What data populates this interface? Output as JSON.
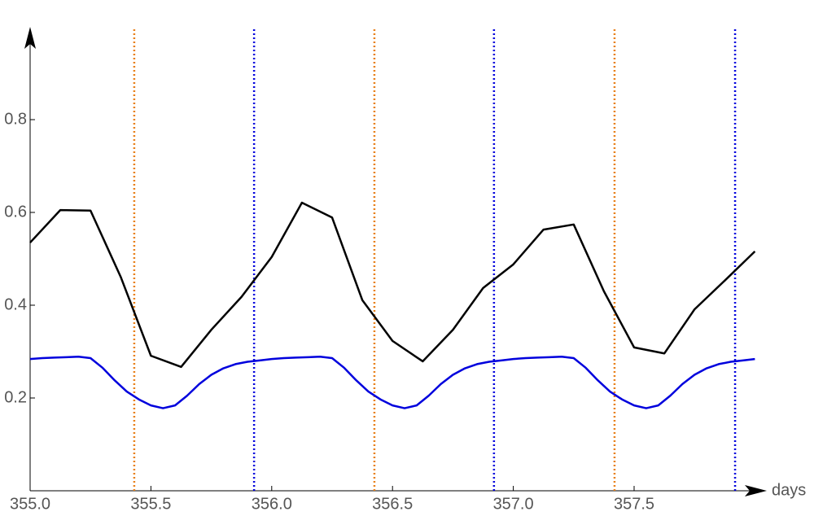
{
  "chart_data": {
    "type": "line",
    "x_label": "days",
    "xlim": [
      355,
      358.05
    ],
    "ylim": [
      0,
      1.0
    ],
    "xticks": [
      {
        "value": 355,
        "label": "355.0"
      },
      355.5,
      {
        "value": 356,
        "label": "356.0"
      },
      356.5,
      {
        "value": 357,
        "label": "357.0"
      },
      357.5
    ],
    "yticks": [
      0.2,
      0.4,
      0.6,
      0.8
    ],
    "grid": false,
    "series": [
      {
        "color": "#000000",
        "x": [
          355.0,
          355.125,
          355.25,
          355.375,
          355.5,
          355.625,
          355.75,
          355.875,
          356.0,
          356.125,
          356.25,
          356.375,
          356.5,
          356.625,
          356.75,
          356.875,
          357.0,
          357.125,
          357.25,
          357.375,
          357.5,
          357.625,
          357.75,
          357.875,
          358.0
        ],
        "values": [
          0.535,
          0.605,
          0.604,
          0.461,
          0.291,
          0.267,
          0.347,
          0.418,
          0.504,
          0.621,
          0.589,
          0.411,
          0.323,
          0.279,
          0.347,
          0.437,
          0.488,
          0.563,
          0.574,
          0.43,
          0.309,
          0.296,
          0.391,
          0.453,
          0.516
        ]
      },
      {
        "color": "#0000dd",
        "x": [
          355.0,
          355.05,
          355.1,
          355.15,
          355.2,
          355.25,
          355.3,
          355.35,
          355.4,
          355.45,
          355.5,
          355.55,
          355.6,
          355.65,
          355.7,
          355.75,
          355.8,
          355.85,
          355.9,
          355.95,
          356.0,
          356.05,
          356.1,
          356.15,
          356.2,
          356.25,
          356.3,
          356.35,
          356.4,
          356.45,
          356.5,
          356.55,
          356.6,
          356.65,
          356.7,
          356.75,
          356.8,
          356.85,
          356.9,
          356.95,
          357.0,
          357.05,
          357.1,
          357.15,
          357.2,
          357.25,
          357.3,
          357.35,
          357.4,
          357.45,
          357.5,
          357.55,
          357.6,
          357.65,
          357.7,
          357.75,
          357.8,
          357.85,
          357.9,
          357.95,
          358.0
        ],
        "values": [
          0.284,
          0.286,
          0.287,
          0.288,
          0.289,
          0.286,
          0.265,
          0.238,
          0.214,
          0.197,
          0.184,
          0.178,
          0.184,
          0.205,
          0.23,
          0.25,
          0.264,
          0.273,
          0.278,
          0.281,
          0.284,
          0.286,
          0.287,
          0.288,
          0.289,
          0.286,
          0.265,
          0.238,
          0.214,
          0.197,
          0.184,
          0.178,
          0.184,
          0.205,
          0.23,
          0.25,
          0.264,
          0.273,
          0.278,
          0.281,
          0.284,
          0.286,
          0.287,
          0.288,
          0.289,
          0.286,
          0.265,
          0.238,
          0.214,
          0.197,
          0.184,
          0.178,
          0.184,
          0.205,
          0.23,
          0.25,
          0.264,
          0.273,
          0.278,
          0.281,
          0.284
        ]
      }
    ],
    "reference_lines": [
      {
        "color": "#e8801a",
        "x": [
          355.431,
          356.425,
          357.419
        ]
      },
      {
        "color": "#0000dd",
        "x": [
          355.927,
          356.92,
          357.918
        ]
      }
    ]
  }
}
